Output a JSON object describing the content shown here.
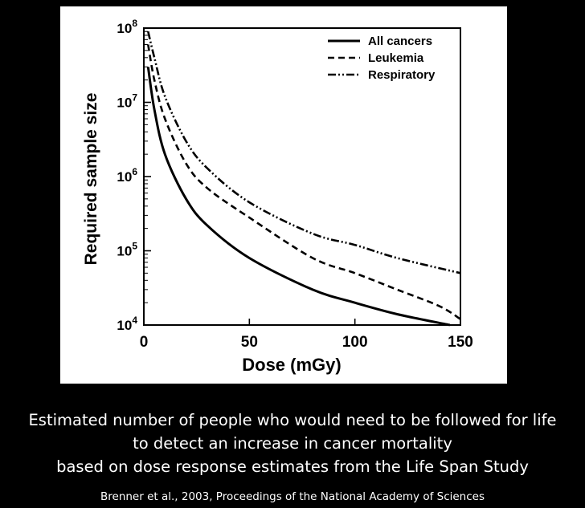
{
  "chart_data": {
    "type": "line",
    "title": "",
    "xlabel": "Dose (mGy)",
    "ylabel": "Required sample size",
    "xlim": [
      0,
      150
    ],
    "ylim": [
      10000,
      100000000
    ],
    "yscale": "log",
    "grid": false,
    "legend_position": "top-right",
    "x_ticks": [
      {
        "value": 0,
        "label": "0"
      },
      {
        "value": 50,
        "label": "50"
      },
      {
        "value": 100,
        "label": "100"
      },
      {
        "value": 150,
        "label": "150"
      }
    ],
    "y_ticks": [
      {
        "value": 10000,
        "base": "10",
        "exp": "4"
      },
      {
        "value": 100000,
        "base": "10",
        "exp": "5"
      },
      {
        "value": 1000000,
        "base": "10",
        "exp": "6"
      },
      {
        "value": 10000000,
        "base": "10",
        "exp": "7"
      },
      {
        "value": 100000000,
        "base": "10",
        "exp": "8"
      }
    ],
    "series": [
      {
        "name": "All cancers",
        "style": "solid",
        "x": [
          2,
          5,
          10,
          20,
          30,
          50,
          80,
          100,
          120,
          145
        ],
        "values": [
          30000000,
          8000000,
          2000000,
          500000,
          220000,
          80000,
          30000,
          20000,
          14000,
          10000
        ]
      },
      {
        "name": "Leukemia",
        "style": "dashed",
        "x": [
          2,
          5,
          10,
          20,
          30,
          50,
          80,
          100,
          120,
          140,
          150
        ],
        "values": [
          60000000,
          20000000,
          6000000,
          1500000,
          700000,
          280000,
          80000,
          50000,
          30000,
          18000,
          12000
        ]
      },
      {
        "name": "Respiratory",
        "style": "dash-dot-dot",
        "x": [
          2,
          5,
          10,
          20,
          30,
          50,
          80,
          100,
          120,
          150
        ],
        "values": [
          90000000,
          40000000,
          12000000,
          3000000,
          1300000,
          450000,
          170000,
          120000,
          80000,
          50000
        ]
      }
    ]
  },
  "caption": {
    "line1": "Estimated number of people who would need to be followed for life",
    "line2": "to detect an increase in cancer mortality",
    "line3": "based on dose response estimates from the Life Span Study"
  },
  "credit": "Brenner et al., 2003, Proceedings of the National Academy of Sciences",
  "colors": {
    "background": "#000000",
    "panel": "#ffffff",
    "ink": "#000000",
    "caption_text": "#ffffff"
  }
}
